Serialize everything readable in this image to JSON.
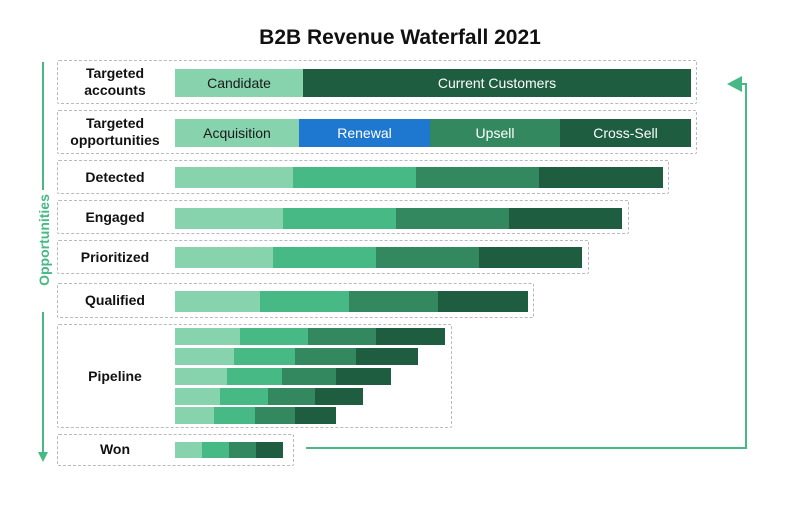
{
  "title": "B2B Revenue Waterfall 2021",
  "side_label": "Opportunities",
  "colors": {
    "candidate": "#86d3ae",
    "current": "#1e5d40",
    "shade1": "#86d3ae",
    "shade2": "#46b984",
    "shade3": "#33885f",
    "shade4": "#1e5d40",
    "renewal": "#1e78d0",
    "arrow": "#46b984"
  },
  "stages": [
    {
      "label": "Targeted\naccounts"
    },
    {
      "label": "Targeted\nopportunities"
    },
    {
      "label": "Detected"
    },
    {
      "label": "Engaged"
    },
    {
      "label": "Prioritized"
    },
    {
      "label": "Qualified"
    },
    {
      "label": "Pipeline"
    },
    {
      "label": "Won"
    }
  ],
  "accounts": {
    "candidate_label": "Candidate",
    "current_label": "Current Customers"
  },
  "opportunity_types": {
    "acquisition_label": "Acquisition",
    "renewal_label": "Renewal",
    "upsell_label": "Upsell",
    "crosssell_label": "Cross-Sell"
  }
}
